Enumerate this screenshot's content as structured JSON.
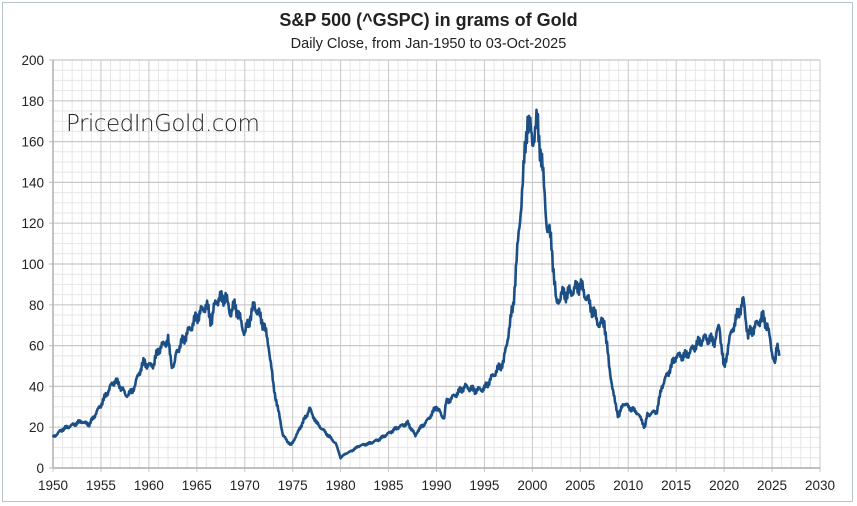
{
  "chart_data": {
    "type": "line",
    "title": "S&P 500 (^GSPC) in grams of Gold",
    "subtitle": "Daily Close, from Jan-1950 to 03-Oct-2025",
    "watermark": "PricedInGold.com",
    "xlabel": "",
    "ylabel": "",
    "xlim": [
      1950,
      2030
    ],
    "ylim": [
      0,
      200
    ],
    "x_ticks": [
      1950,
      1955,
      1960,
      1965,
      1970,
      1975,
      1980,
      1985,
      1990,
      1995,
      2000,
      2005,
      2010,
      2015,
      2020,
      2025,
      2030
    ],
    "y_ticks": [
      0,
      20,
      40,
      60,
      80,
      100,
      120,
      140,
      160,
      180,
      200
    ],
    "grid": true,
    "line_color": "#1b4f86",
    "series": [
      {
        "name": "S&P 500 in grams of gold",
        "points": [
          [
            1950,
            15
          ],
          [
            1950.5,
            17
          ],
          [
            1951,
            19
          ],
          [
            1952,
            21
          ],
          [
            1953,
            23
          ],
          [
            1953.7,
            21
          ],
          [
            1954,
            23
          ],
          [
            1955,
            31
          ],
          [
            1956,
            40
          ],
          [
            1956.5,
            43
          ],
          [
            1957,
            40
          ],
          [
            1957.8,
            35
          ],
          [
            1958.5,
            40
          ],
          [
            1959,
            47
          ],
          [
            1959.5,
            52
          ],
          [
            1960,
            50
          ],
          [
            1960.5,
            51
          ],
          [
            1961,
            58
          ],
          [
            1962,
            63
          ],
          [
            1962.4,
            48
          ],
          [
            1963,
            58
          ],
          [
            1964,
            66
          ],
          [
            1965,
            74
          ],
          [
            1966,
            80
          ],
          [
            1966.5,
            72
          ],
          [
            1967,
            82
          ],
          [
            1968,
            84
          ],
          [
            1968.5,
            76
          ],
          [
            1969,
            80
          ],
          [
            1970,
            66
          ],
          [
            1971,
            80
          ],
          [
            1972,
            70
          ],
          [
            1972.5,
            60
          ],
          [
            1973,
            40
          ],
          [
            1973.5,
            28
          ],
          [
            1974,
            16
          ],
          [
            1974.8,
            11
          ],
          [
            1975.5,
            17
          ],
          [
            1976,
            22
          ],
          [
            1976.8,
            29
          ],
          [
            1977.5,
            22
          ],
          [
            1978.5,
            17
          ],
          [
            1979.5,
            12
          ],
          [
            1980,
            5
          ],
          [
            1980.5,
            7
          ],
          [
            1981,
            8
          ],
          [
            1982,
            11
          ],
          [
            1983,
            12
          ],
          [
            1984,
            14
          ],
          [
            1985,
            17
          ],
          [
            1986,
            20
          ],
          [
            1987,
            22
          ],
          [
            1987.8,
            16
          ],
          [
            1988,
            18
          ],
          [
            1989,
            23
          ],
          [
            1990,
            30
          ],
          [
            1990.8,
            24
          ],
          [
            1991,
            32
          ],
          [
            1992,
            36
          ],
          [
            1993,
            40
          ],
          [
            1994,
            38
          ],
          [
            1995,
            39
          ],
          [
            1996,
            46
          ],
          [
            1997,
            52
          ],
          [
            1998,
            80
          ],
          [
            1998.5,
            110
          ],
          [
            1999,
            140
          ],
          [
            1999.5,
            172
          ],
          [
            2000,
            160
          ],
          [
            2000.5,
            170
          ],
          [
            2001,
            150
          ],
          [
            2001.5,
            120
          ],
          [
            2002,
            110
          ],
          [
            2002.5,
            80
          ],
          [
            2003,
            85
          ],
          [
            2004,
            86
          ],
          [
            2005,
            90
          ],
          [
            2006,
            80
          ],
          [
            2007,
            70
          ],
          [
            2007.5,
            72
          ],
          [
            2008,
            50
          ],
          [
            2008.7,
            30
          ],
          [
            2009,
            25
          ],
          [
            2009.5,
            32
          ],
          [
            2010,
            30
          ],
          [
            2011,
            27
          ],
          [
            2011.7,
            20
          ],
          [
            2012,
            26
          ],
          [
            2013,
            28
          ],
          [
            2013.5,
            40
          ],
          [
            2014,
            45
          ],
          [
            2015,
            55
          ],
          [
            2016,
            55
          ],
          [
            2017,
            60
          ],
          [
            2018,
            64
          ],
          [
            2019,
            62
          ],
          [
            2019.5,
            70
          ],
          [
            2020,
            48
          ],
          [
            2020.5,
            62
          ],
          [
            2021,
            70
          ],
          [
            2022,
            82
          ],
          [
            2022.5,
            65
          ],
          [
            2023,
            68
          ],
          [
            2024,
            74
          ],
          [
            2024.5,
            70
          ],
          [
            2025,
            57
          ],
          [
            2025.3,
            50
          ],
          [
            2025.5,
            60
          ],
          [
            2025.75,
            55
          ]
        ]
      }
    ]
  }
}
